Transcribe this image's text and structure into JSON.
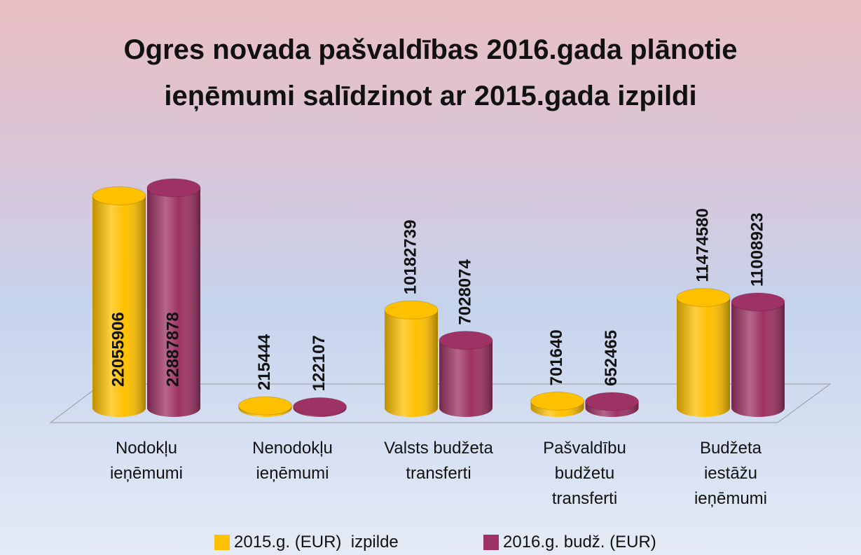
{
  "chart_data": {
    "type": "bar3d",
    "title": "Ogres novada pašvaldības 2016.gada plānotie\nieņēmumi salīdzinot ar 2015.gada izpildi",
    "categories": [
      "Nodokļu\nieņēmumi",
      "Nenodokļu\nieņēmumi",
      "Valsts budžeta\ntransferti",
      "Pašvaldību\nbudžetu\ntransferti",
      "Budžeta\niestāžu\nieņēmumi"
    ],
    "series": [
      {
        "name": "2015.g. (EUR)  izpilde",
        "color": "#ffc000",
        "values": [
          22055906,
          215444,
          10182739,
          701640,
          11474580
        ]
      },
      {
        "name": "2016.g. budž. (EUR)",
        "color": "#9e3264",
        "values": [
          22887878,
          122107,
          7028074,
          652465,
          11008923
        ]
      }
    ],
    "legend": "bottom"
  }
}
